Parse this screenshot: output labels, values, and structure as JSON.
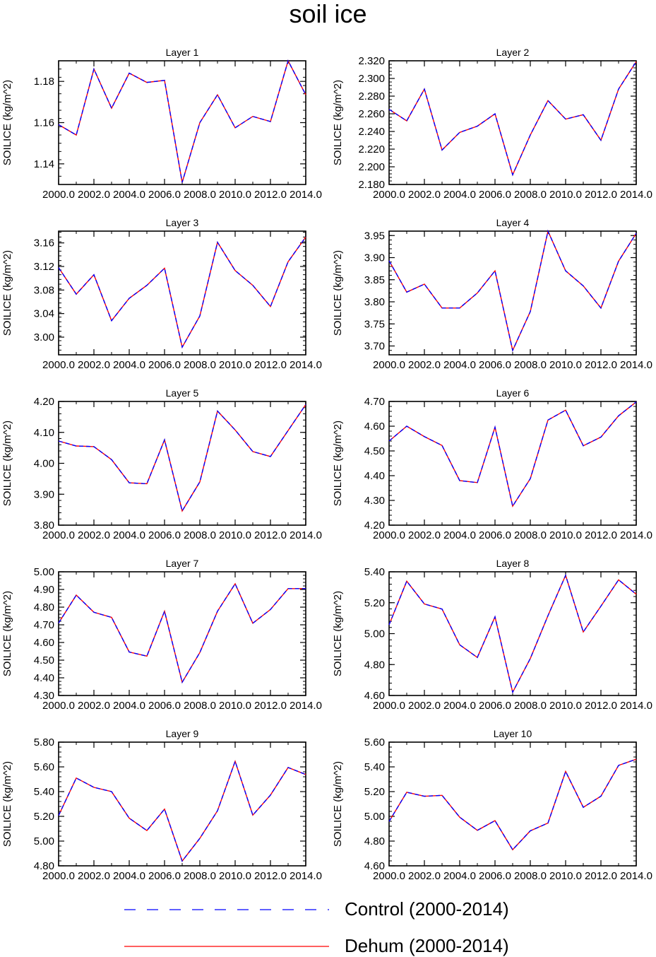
{
  "page_title": "soil ice",
  "x_years": [
    2000,
    2001,
    2002,
    2003,
    2004,
    2005,
    2006,
    2007,
    2008,
    2009,
    2010,
    2011,
    2012,
    2013,
    2014
  ],
  "legend": {
    "control_label": "Control (2000-2014)",
    "dehum_label": "Dehum (2000-2014)",
    "control_color": "#0000ff",
    "dehum_color": "#ff0000"
  },
  "chart_data": [
    {
      "type": "line",
      "title": "Layer 1",
      "ylabel": "SOILICE  (kg/m^2)",
      "xlim": [
        2000,
        2014
      ],
      "ylim": [
        1.13,
        1.19
      ],
      "xticks": [
        "2000.0",
        "2002.0",
        "2004.0",
        "2006.0",
        "2008.0",
        "2010.0",
        "2012.0",
        "2014.0"
      ],
      "yticks": [
        "1.14",
        "1.16",
        "1.18"
      ],
      "ytick_values": [
        1.14,
        1.16,
        1.18
      ],
      "series": [
        {
          "name": "Control (2000-2014)",
          "values": [
            1.159,
            1.154,
            1.186,
            1.167,
            1.184,
            1.1795,
            1.1805,
            1.131,
            1.16,
            1.1735,
            1.1575,
            1.163,
            1.1605,
            1.19,
            1.1735
          ]
        },
        {
          "name": "Dehum (2000-2014)",
          "values": [
            1.159,
            1.154,
            1.186,
            1.167,
            1.184,
            1.1795,
            1.1805,
            1.131,
            1.16,
            1.1735,
            1.1575,
            1.163,
            1.1605,
            1.19,
            1.1735
          ]
        }
      ]
    },
    {
      "type": "line",
      "title": "Layer 2",
      "ylabel": "SOILICE  (kg/m^2)",
      "xlim": [
        2000,
        2014
      ],
      "ylim": [
        2.18,
        2.32
      ],
      "xticks": [
        "2000.0",
        "2002.0",
        "2004.0",
        "2006.0",
        "2008.0",
        "2010.0",
        "2012.0",
        "2014.0"
      ],
      "yticks": [
        "2.180",
        "2.200",
        "2.220",
        "2.240",
        "2.260",
        "2.280",
        "2.300",
        "2.320"
      ],
      "ytick_values": [
        2.18,
        2.2,
        2.22,
        2.24,
        2.26,
        2.28,
        2.3,
        2.32
      ],
      "series": [
        {
          "name": "Control (2000-2014)",
          "values": [
            2.265,
            2.252,
            2.288,
            2.219,
            2.239,
            2.246,
            2.26,
            2.191,
            2.236,
            2.275,
            2.254,
            2.259,
            2.23,
            2.288,
            2.319
          ]
        },
        {
          "name": "Dehum (2000-2014)",
          "values": [
            2.265,
            2.252,
            2.288,
            2.219,
            2.239,
            2.246,
            2.26,
            2.191,
            2.236,
            2.275,
            2.254,
            2.259,
            2.23,
            2.288,
            2.319
          ]
        }
      ]
    },
    {
      "type": "line",
      "title": "Layer 3",
      "ylabel": "SOILICE  (kg/m^2)",
      "xlim": [
        2000,
        2014
      ],
      "ylim": [
        2.97,
        3.18
      ],
      "xticks": [
        "2000.0",
        "2002.0",
        "2004.0",
        "2006.0",
        "2008.0",
        "2010.0",
        "2012.0",
        "2014.0"
      ],
      "yticks": [
        "3.00",
        "3.04",
        "3.08",
        "3.12",
        "3.16"
      ],
      "ytick_values": [
        3.0,
        3.04,
        3.08,
        3.12,
        3.16
      ],
      "series": [
        {
          "name": "Control (2000-2014)",
          "values": [
            3.118,
            3.073,
            3.106,
            3.028,
            3.066,
            3.088,
            3.117,
            2.983,
            3.036,
            3.161,
            3.113,
            3.088,
            3.052,
            3.128,
            3.17
          ]
        },
        {
          "name": "Dehum (2000-2014)",
          "values": [
            3.118,
            3.073,
            3.106,
            3.028,
            3.066,
            3.088,
            3.117,
            2.983,
            3.036,
            3.161,
            3.113,
            3.088,
            3.052,
            3.128,
            3.17
          ]
        }
      ]
    },
    {
      "type": "line",
      "title": "Layer 4",
      "ylabel": "SOILICE  (kg/m^2)",
      "xlim": [
        2000,
        2014
      ],
      "ylim": [
        3.68,
        3.96
      ],
      "xticks": [
        "2000.0",
        "2002.0",
        "2004.0",
        "2006.0",
        "2008.0",
        "2010.0",
        "2012.0",
        "2014.0"
      ],
      "yticks": [
        "3.70",
        "3.75",
        "3.80",
        "3.85",
        "3.90",
        "3.95"
      ],
      "ytick_values": [
        3.7,
        3.75,
        3.8,
        3.85,
        3.9,
        3.95
      ],
      "series": [
        {
          "name": "Control (2000-2014)",
          "values": [
            3.893,
            3.822,
            3.84,
            3.786,
            3.786,
            3.82,
            3.87,
            3.69,
            3.778,
            3.96,
            3.87,
            3.836,
            3.786,
            3.892,
            3.955
          ]
        },
        {
          "name": "Dehum (2000-2014)",
          "values": [
            3.893,
            3.822,
            3.84,
            3.786,
            3.786,
            3.82,
            3.87,
            3.69,
            3.778,
            3.96,
            3.87,
            3.836,
            3.786,
            3.892,
            3.955
          ]
        }
      ]
    },
    {
      "type": "line",
      "title": "Layer 5",
      "ylabel": "SOILICE  (kg/m^2)",
      "xlim": [
        2000,
        2014
      ],
      "ylim": [
        3.8,
        4.2
      ],
      "xticks": [
        "2000.0",
        "2002.0",
        "2004.0",
        "2006.0",
        "2008.0",
        "2010.0",
        "2012.0",
        "2014.0"
      ],
      "yticks": [
        "3.80",
        "3.90",
        "4.00",
        "4.10",
        "4.20"
      ],
      "ytick_values": [
        3.8,
        3.9,
        4.0,
        4.1,
        4.2
      ],
      "series": [
        {
          "name": "Control (2000-2014)",
          "values": [
            4.072,
            4.056,
            4.054,
            4.012,
            3.937,
            3.934,
            4.076,
            3.846,
            3.94,
            4.169,
            4.108,
            4.038,
            4.022,
            4.106,
            4.19
          ]
        },
        {
          "name": "Dehum (2000-2014)",
          "values": [
            4.072,
            4.056,
            4.054,
            4.012,
            3.937,
            3.934,
            4.076,
            3.846,
            3.94,
            4.169,
            4.108,
            4.038,
            4.022,
            4.106,
            4.19
          ]
        }
      ]
    },
    {
      "type": "line",
      "title": "Layer 6",
      "ylabel": "SOILICE  (kg/m^2)",
      "xlim": [
        2000,
        2014
      ],
      "ylim": [
        4.2,
        4.7
      ],
      "xticks": [
        "2000.0",
        "2002.0",
        "2004.0",
        "2006.0",
        "2008.0",
        "2010.0",
        "2012.0",
        "2014.0"
      ],
      "yticks": [
        "4.20",
        "4.30",
        "4.40",
        "4.50",
        "4.60",
        "4.70"
      ],
      "ytick_values": [
        4.2,
        4.3,
        4.4,
        4.5,
        4.6,
        4.7
      ],
      "series": [
        {
          "name": "Control (2000-2014)",
          "values": [
            4.54,
            4.6,
            4.558,
            4.522,
            4.38,
            4.372,
            4.596,
            4.277,
            4.388,
            4.625,
            4.665,
            4.521,
            4.556,
            4.642,
            4.698
          ]
        },
        {
          "name": "Dehum (2000-2014)",
          "values": [
            4.54,
            4.6,
            4.558,
            4.522,
            4.38,
            4.372,
            4.596,
            4.277,
            4.388,
            4.625,
            4.665,
            4.521,
            4.556,
            4.642,
            4.698
          ]
        }
      ]
    },
    {
      "type": "line",
      "title": "Layer 7",
      "ylabel": "SOILICE  (kg/m^2)",
      "xlim": [
        2000,
        2014
      ],
      "ylim": [
        4.3,
        5.0
      ],
      "xticks": [
        "2000.0",
        "2002.0",
        "2004.0",
        "2006.0",
        "2008.0",
        "2010.0",
        "2012.0",
        "2014.0"
      ],
      "yticks": [
        "4.30",
        "4.40",
        "4.50",
        "4.60",
        "4.70",
        "4.80",
        "4.90",
        "5.00"
      ],
      "ytick_values": [
        4.3,
        4.4,
        4.5,
        4.6,
        4.7,
        4.8,
        4.9,
        5.0
      ],
      "series": [
        {
          "name": "Control (2000-2014)",
          "values": [
            4.71,
            4.868,
            4.771,
            4.742,
            4.546,
            4.523,
            4.777,
            4.375,
            4.543,
            4.777,
            4.932,
            4.709,
            4.787,
            4.905,
            4.905
          ]
        },
        {
          "name": "Dehum (2000-2014)",
          "values": [
            4.71,
            4.868,
            4.771,
            4.742,
            4.546,
            4.523,
            4.777,
            4.375,
            4.543,
            4.777,
            4.932,
            4.709,
            4.787,
            4.905,
            4.905
          ]
        }
      ]
    },
    {
      "type": "line",
      "title": "Layer 8",
      "ylabel": "SOILICE  (kg/m^2)",
      "xlim": [
        2000,
        2014
      ],
      "ylim": [
        4.6,
        5.4
      ],
      "xticks": [
        "2000.0",
        "2002.0",
        "2004.0",
        "2006.0",
        "2008.0",
        "2010.0",
        "2012.0",
        "2014.0"
      ],
      "yticks": [
        "4.60",
        "4.80",
        "5.00",
        "5.20",
        "5.40"
      ],
      "ytick_values": [
        4.6,
        4.8,
        5.0,
        5.2,
        5.4
      ],
      "series": [
        {
          "name": "Control (2000-2014)",
          "values": [
            5.057,
            5.339,
            5.192,
            5.159,
            4.928,
            4.846,
            5.109,
            4.621,
            4.839,
            5.116,
            5.377,
            5.011,
            5.178,
            5.348,
            5.255
          ]
        },
        {
          "name": "Dehum (2000-2014)",
          "values": [
            5.057,
            5.339,
            5.192,
            5.159,
            4.928,
            4.846,
            5.109,
            4.621,
            4.839,
            5.116,
            5.377,
            5.011,
            5.178,
            5.348,
            5.255
          ]
        }
      ]
    },
    {
      "type": "line",
      "title": "Layer 9",
      "ylabel": "SOILICE  (kg/m^2)",
      "xlim": [
        2000,
        2014
      ],
      "ylim": [
        4.8,
        5.8
      ],
      "xticks": [
        "2000.0",
        "2002.0",
        "2004.0",
        "2006.0",
        "2008.0",
        "2010.0",
        "2012.0",
        "2014.0"
      ],
      "yticks": [
        "4.80",
        "5.00",
        "5.20",
        "5.40",
        "5.60",
        "5.80"
      ],
      "ytick_values": [
        4.8,
        5.0,
        5.2,
        5.4,
        5.6,
        5.8
      ],
      "series": [
        {
          "name": "Control (2000-2014)",
          "values": [
            5.207,
            5.51,
            5.434,
            5.4,
            5.185,
            5.085,
            5.258,
            4.838,
            5.022,
            5.245,
            5.645,
            5.21,
            5.372,
            5.595,
            5.538
          ]
        },
        {
          "name": "Dehum (2000-2014)",
          "values": [
            5.207,
            5.51,
            5.434,
            5.4,
            5.185,
            5.085,
            5.258,
            4.838,
            5.022,
            5.245,
            5.645,
            5.21,
            5.372,
            5.595,
            5.538
          ]
        }
      ]
    },
    {
      "type": "line",
      "title": "Layer 10",
      "ylabel": "SOILICE  (kg/m^2)",
      "xlim": [
        2000,
        2014
      ],
      "ylim": [
        4.6,
        5.6
      ],
      "xticks": [
        "2000.0",
        "2002.0",
        "2004.0",
        "2006.0",
        "2008.0",
        "2010.0",
        "2012.0",
        "2014.0"
      ],
      "yticks": [
        "4.60",
        "4.80",
        "5.00",
        "5.20",
        "5.40",
        "5.60"
      ],
      "ytick_values": [
        4.6,
        4.8,
        5.0,
        5.2,
        5.4,
        5.6
      ],
      "series": [
        {
          "name": "Control (2000-2014)",
          "values": [
            4.959,
            5.195,
            5.162,
            5.17,
            4.993,
            4.887,
            4.965,
            4.73,
            4.883,
            4.946,
            5.363,
            5.073,
            5.163,
            5.412,
            5.462
          ]
        },
        {
          "name": "Dehum (2000-2014)",
          "values": [
            4.959,
            5.195,
            5.162,
            5.17,
            4.993,
            4.887,
            4.965,
            4.73,
            4.883,
            4.946,
            5.363,
            5.073,
            5.163,
            5.412,
            5.462
          ]
        }
      ]
    }
  ]
}
